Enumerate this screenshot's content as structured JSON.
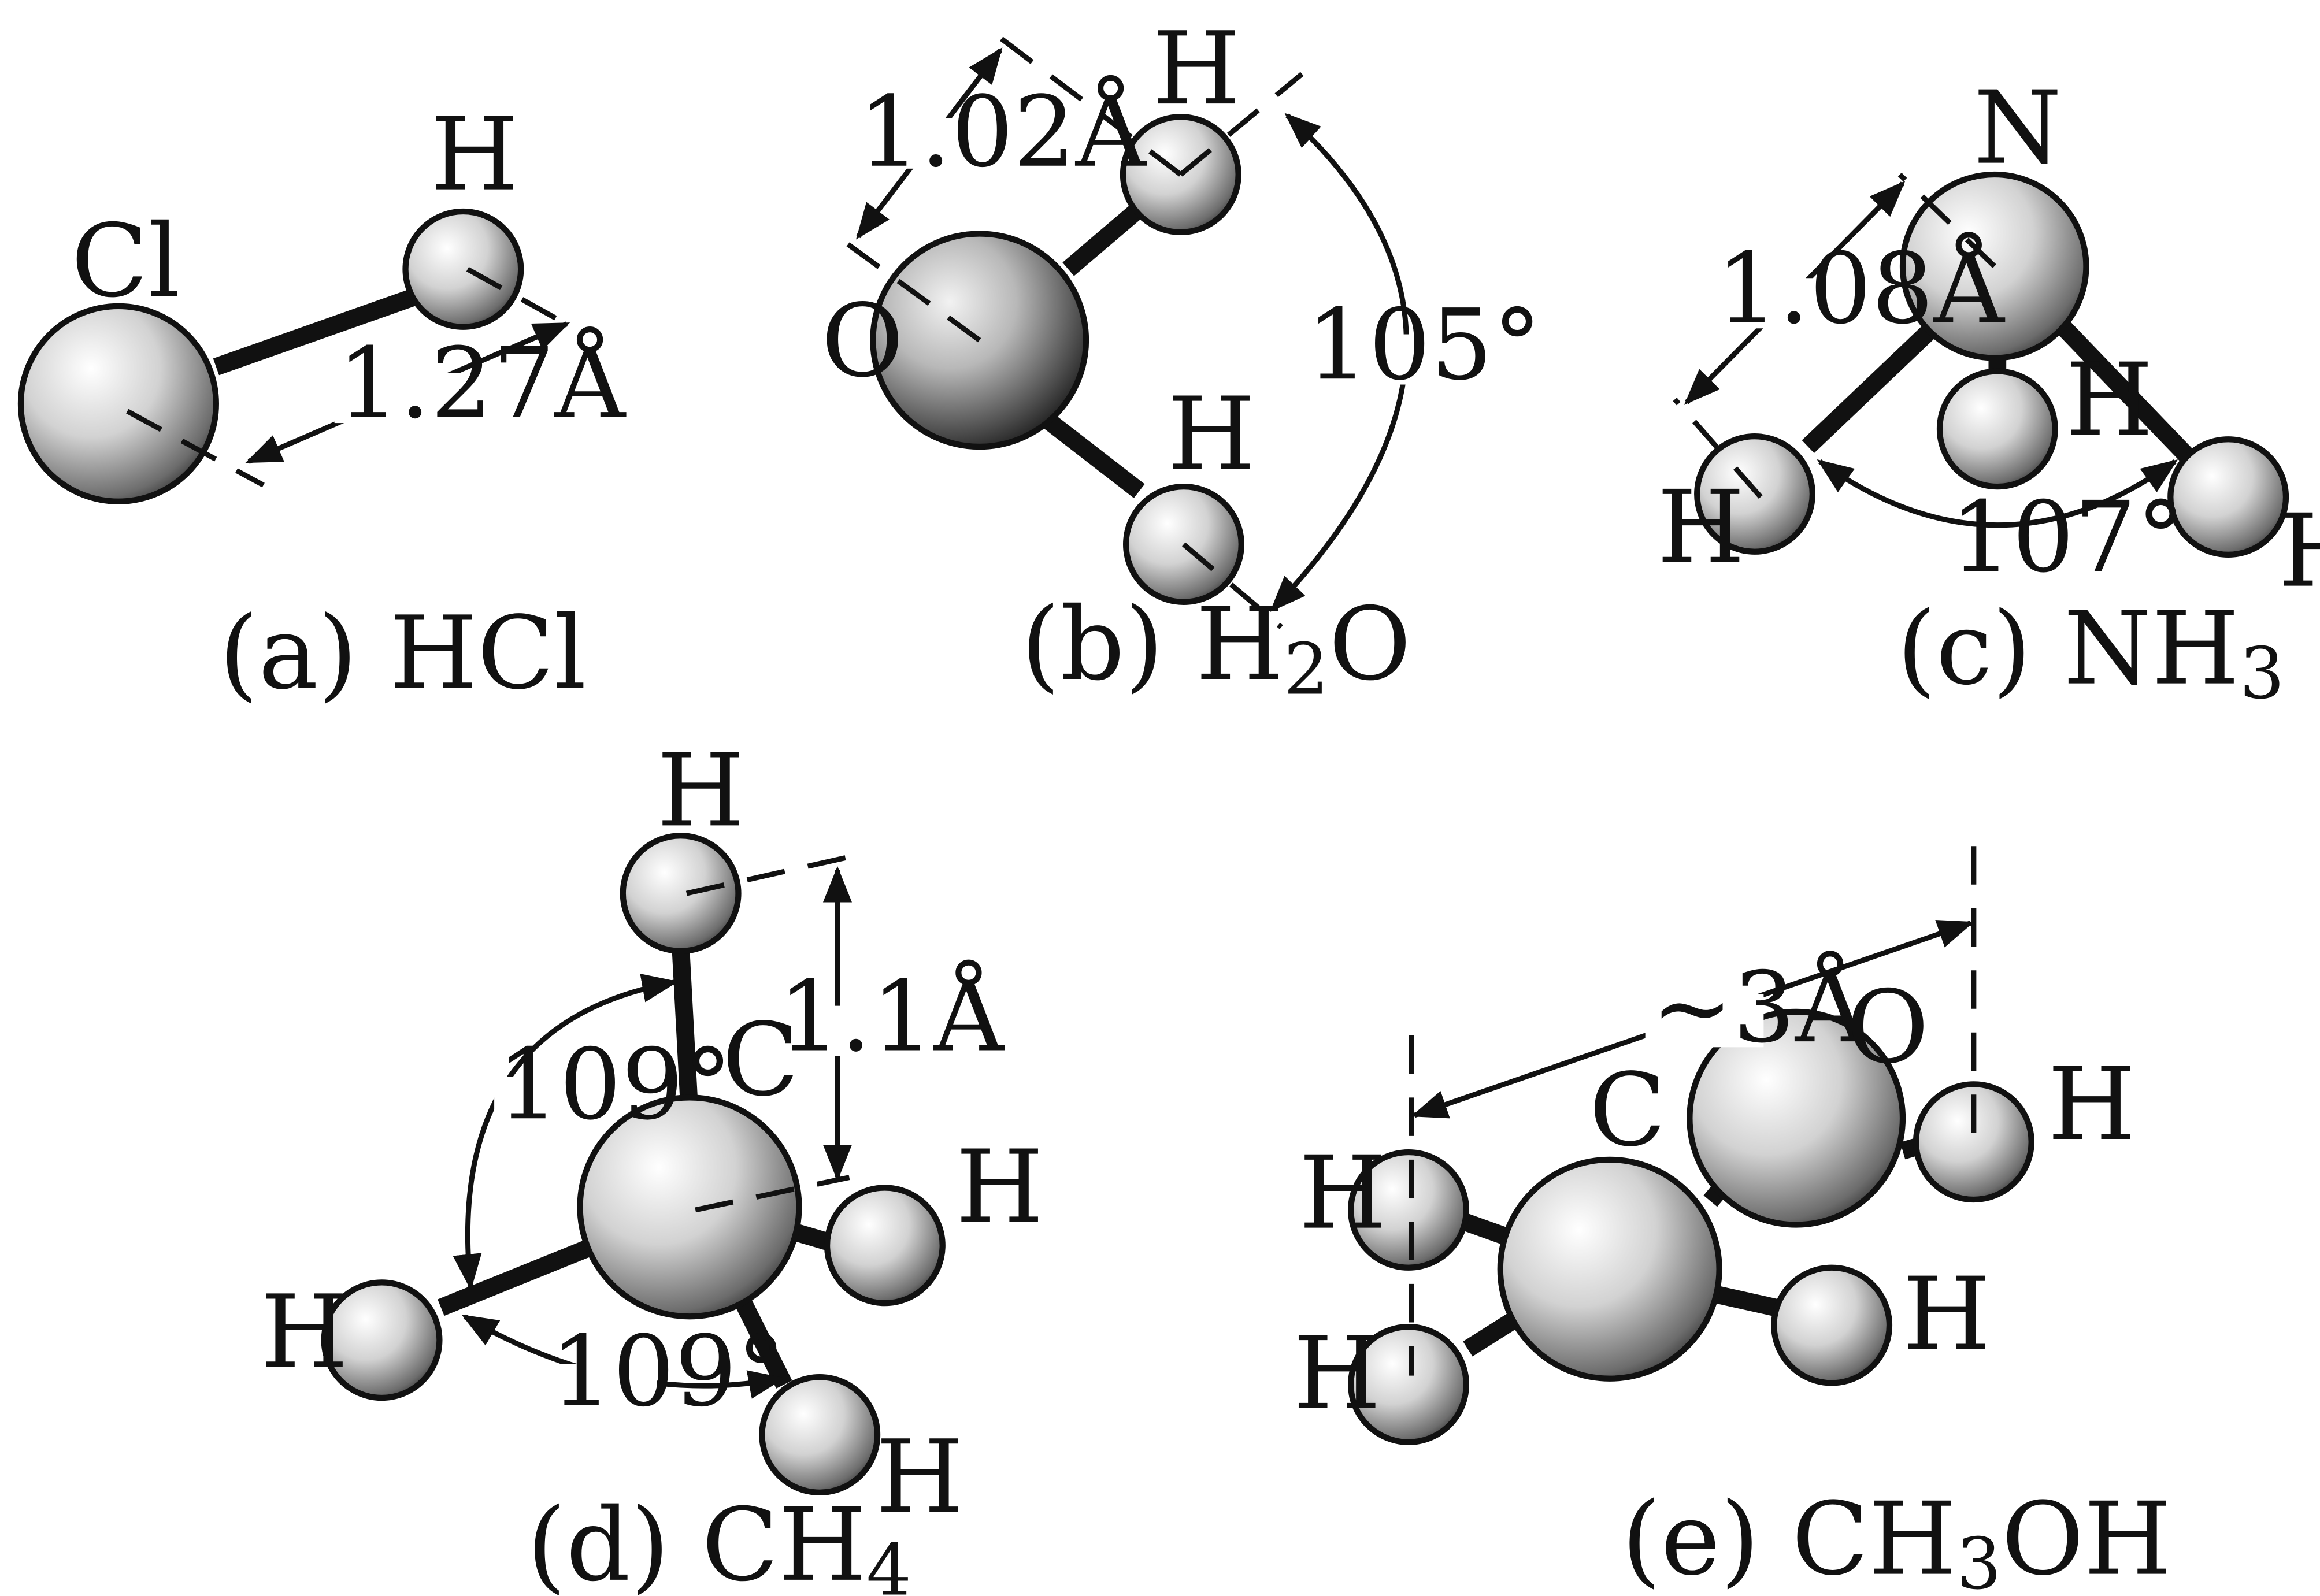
{
  "molecules": {
    "hcl": {
      "caption": "(a)  HCl",
      "atoms": {
        "cl": "Cl",
        "h": "H"
      },
      "bond_length": "1.27Å"
    },
    "h2o": {
      "caption_prefix": "(b)  H",
      "caption_sub": "2",
      "caption_suffix": "O",
      "atoms": {
        "o": "O",
        "h1": "H",
        "h2": "H"
      },
      "bond_length": "1.02Å",
      "bond_angle": "105°"
    },
    "nh3": {
      "caption_prefix": "(c)  NH",
      "caption_sub": "3",
      "atoms": {
        "n": "N",
        "h1": "H",
        "h2": "H",
        "h3": "H"
      },
      "bond_length": "1.08Å",
      "bond_angle": "107°"
    },
    "ch4": {
      "caption_prefix": "(d)  CH",
      "caption_sub": "4",
      "atoms": {
        "c": "C",
        "h1": "H",
        "h2": "H",
        "h3": "H",
        "h4": "H"
      },
      "bond_length": "1.1Å",
      "bond_angle_1": "109°",
      "bond_angle_2": "109°"
    },
    "ch3oh": {
      "caption_prefix": "(e)  CH",
      "caption_sub": "3",
      "caption_suffix": "OH",
      "atoms": {
        "c": "C",
        "o": "O",
        "h1": "H",
        "h2": "H",
        "h3": "H",
        "h4": "H"
      },
      "length": "~3Å"
    }
  }
}
